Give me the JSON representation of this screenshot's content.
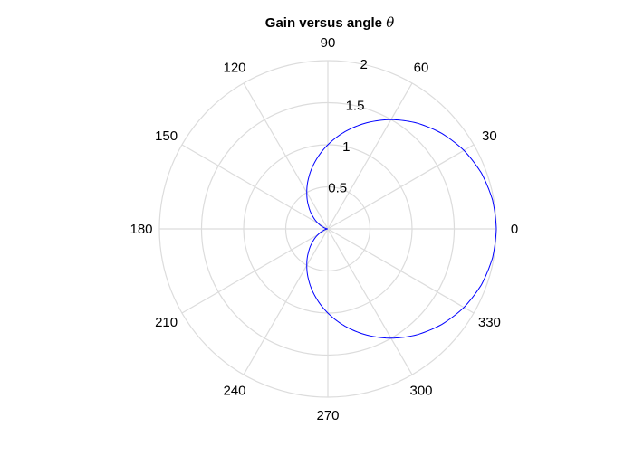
{
  "chart_data": {
    "type": "polar-line",
    "title": "Gain versus angle",
    "title_symbol": "θ",
    "rlim": [
      0,
      2
    ],
    "r_ticks": [
      0.5,
      1,
      1.5,
      2
    ],
    "r_tick_labels": [
      "0.5",
      "1",
      "1.5",
      "2"
    ],
    "theta_ticks_deg": [
      0,
      30,
      60,
      90,
      120,
      150,
      180,
      210,
      240,
      270,
      300,
      330
    ],
    "theta_tick_labels": [
      "0",
      "30",
      "60",
      "90",
      "120",
      "150",
      "180",
      "210",
      "240",
      "270",
      "300",
      "330"
    ],
    "grid": true,
    "grid_color": "#dcdcdc",
    "series": [
      {
        "color": "#0000ff",
        "theta_deg": [
          0,
          10,
          20,
          30,
          40,
          50,
          60,
          70,
          80,
          90,
          100,
          110,
          120,
          130,
          140,
          150,
          160,
          170,
          180,
          190,
          200,
          210,
          220,
          230,
          240,
          250,
          260,
          270,
          280,
          290,
          300,
          310,
          320,
          330,
          340,
          350,
          360
        ],
        "r": [
          2.0,
          1.985,
          1.94,
          1.866,
          1.766,
          1.643,
          1.5,
          1.342,
          1.174,
          1.0,
          0.826,
          0.658,
          0.5,
          0.357,
          0.234,
          0.134,
          0.06,
          0.015,
          0.0,
          0.015,
          0.06,
          0.134,
          0.234,
          0.357,
          0.5,
          0.658,
          0.826,
          1.0,
          1.174,
          1.342,
          1.5,
          1.643,
          1.766,
          1.866,
          1.94,
          1.985,
          2.0
        ]
      }
    ]
  }
}
